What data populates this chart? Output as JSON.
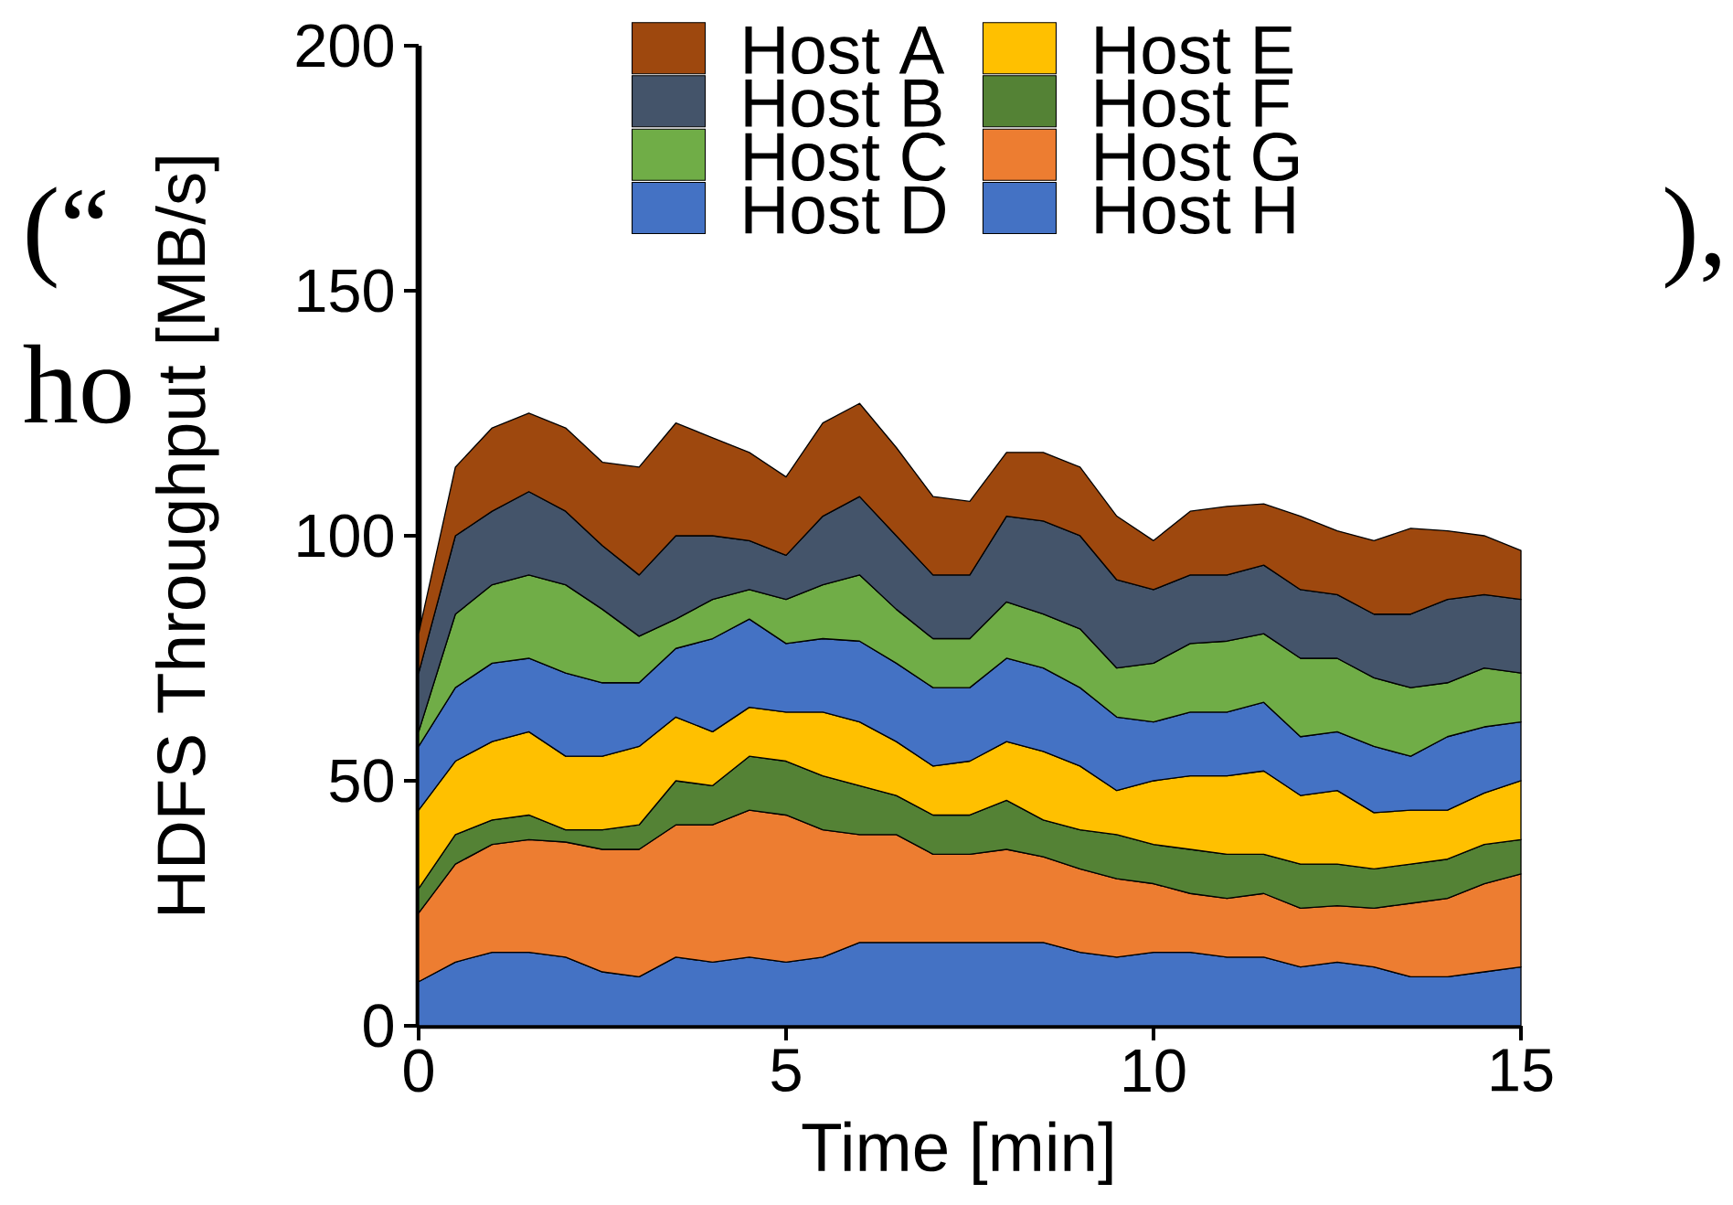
{
  "chart_data": {
    "type": "area",
    "stacked": true,
    "xlabel": "Time [min]",
    "ylabel": "HDFS Throughput [MB/s]",
    "xlim": [
      0,
      15
    ],
    "ylim": [
      0,
      200
    ],
    "xticks": [
      0,
      5,
      10,
      15
    ],
    "yticks": [
      0,
      50,
      100,
      150,
      200
    ],
    "legend": "top",
    "annotations": [
      "(“",
      "ho",
      " ),"
    ],
    "x": [
      0,
      0.5,
      1,
      1.5,
      2,
      2.5,
      3,
      3.5,
      4,
      4.5,
      5,
      5.5,
      6,
      6.5,
      7,
      7.5,
      8,
      8.5,
      9,
      9.5,
      10,
      10.5,
      11,
      11.5,
      12,
      12.5,
      13,
      13.5,
      14,
      14.5,
      15
    ],
    "series": [
      {
        "name": "Host H",
        "color": "#4472c4",
        "values": [
          9,
          13,
          15,
          15,
          14,
          11,
          10,
          14,
          13,
          14,
          13,
          14,
          17,
          17,
          17,
          17,
          17,
          17,
          15,
          14,
          15,
          15,
          14,
          14,
          12,
          13,
          12,
          10,
          10,
          11,
          12
        ]
      },
      {
        "name": "Host G",
        "color": "#ed7d31",
        "values": [
          14,
          20,
          22,
          23,
          23.5,
          25,
          26,
          27,
          28,
          30,
          30,
          26,
          22,
          22,
          18,
          18,
          19,
          17.5,
          17,
          16,
          14,
          12,
          12,
          13,
          12,
          11.5,
          12,
          15,
          16,
          18,
          19
        ]
      },
      {
        "name": "Host F",
        "color": "#548235",
        "values": [
          5,
          6,
          5,
          5,
          2.5,
          4,
          5,
          9,
          8,
          11,
          11,
          11,
          10,
          8,
          8,
          8,
          10,
          7.5,
          8,
          9,
          8,
          9,
          9,
          8,
          9,
          8.5,
          8,
          8,
          8,
          8,
          7
        ]
      },
      {
        "name": "Host E",
        "color": "#ffc000",
        "values": [
          16,
          15,
          16,
          17,
          15,
          15,
          16,
          13,
          11,
          10,
          10,
          13,
          13,
          11,
          10,
          11,
          12,
          14,
          13,
          9,
          13,
          15,
          16,
          17,
          14,
          15,
          11.5,
          11,
          10,
          10.5,
          12
        ]
      },
      {
        "name": "Host D",
        "color": "#4472c4",
        "values": [
          13,
          15,
          16,
          15,
          17,
          15,
          13,
          14,
          19,
          18,
          14,
          15,
          16.5,
          16,
          16,
          15,
          17,
          17,
          16,
          15,
          12,
          13,
          13,
          14,
          12,
          12,
          13.5,
          11,
          15,
          13.5,
          12
        ]
      },
      {
        "name": "Host C",
        "color": "#70ad47",
        "values": [
          3,
          15,
          16,
          17,
          18,
          15,
          9.5,
          6,
          8,
          6,
          9,
          11,
          13.5,
          11,
          10,
          10,
          11.5,
          11,
          12,
          10,
          12,
          14,
          14.5,
          14,
          16,
          15,
          14,
          14,
          11,
          12,
          10
        ]
      },
      {
        "name": "Host B",
        "color": "#44546a",
        "values": [
          12,
          16,
          15,
          17,
          15,
          13,
          12.5,
          17,
          13,
          10,
          9,
          14,
          16,
          15,
          13,
          13,
          17.5,
          19,
          19,
          18,
          15,
          14,
          13.5,
          14,
          14,
          13,
          13,
          15,
          17,
          15,
          15
        ]
      },
      {
        "name": "Host A",
        "color": "#9e480e",
        "values": [
          8,
          14,
          17,
          16,
          17,
          17,
          22,
          23,
          20,
          18,
          16,
          19,
          19,
          18,
          16,
          15,
          13,
          14,
          14,
          13,
          10,
          13,
          14,
          12.5,
          15,
          13,
          15,
          17.5,
          14,
          12,
          10
        ]
      }
    ]
  }
}
